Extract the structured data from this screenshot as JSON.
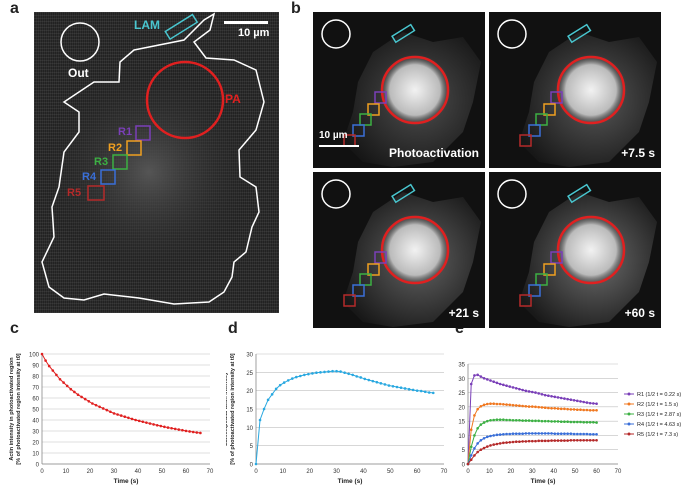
{
  "panel_labels": {
    "a": "a",
    "b": "b",
    "c": "c",
    "d": "d",
    "e": "e"
  },
  "panel_a": {
    "lam": "LAM",
    "scale": "10 µm",
    "out": "Out",
    "pa": "PA",
    "regions": [
      {
        "label": "R1",
        "color": "#7a3fb8"
      },
      {
        "label": "R2",
        "color": "#f0a020"
      },
      {
        "label": "R3",
        "color": "#3cb043"
      },
      {
        "label": "R4",
        "color": "#3a6fd8"
      },
      {
        "label": "R5",
        "color": "#b52a2a"
      }
    ]
  },
  "panel_b": {
    "scale": "10 µm",
    "frames": [
      "Photoactivation",
      "+7.5 s",
      "+21 s",
      "+60 s"
    ]
  },
  "chart_data": [
    {
      "id": "c",
      "type": "line",
      "xlabel": "Time (s)",
      "ylabel_line1": "Actin intensity in photoactivated region",
      "ylabel_line2": "[% of photoactivated region intensity at t0]",
      "xlim": [
        0,
        70
      ],
      "ylim": [
        0,
        100
      ],
      "xticks": [
        0,
        10,
        20,
        30,
        40,
        50,
        60,
        70
      ],
      "yticks": [
        0,
        10,
        20,
        30,
        40,
        50,
        60,
        70,
        80,
        90,
        100
      ],
      "series": [
        {
          "name": "PA",
          "color": "#e02020",
          "x": [
            0,
            1.5,
            3,
            4.5,
            6,
            7.5,
            9,
            10.5,
            12,
            13.5,
            15,
            16.5,
            18,
            19.5,
            21,
            22.5,
            24,
            25.5,
            27,
            28.5,
            30,
            31.5,
            33,
            34.5,
            36,
            37.5,
            39,
            40.5,
            42,
            43.5,
            45,
            46.5,
            48,
            49.5,
            51,
            52.5,
            54,
            55.5,
            57,
            58.5,
            60,
            61.5,
            63,
            64.5,
            66
          ],
          "y": [
            100,
            94,
            89,
            85,
            81,
            77,
            74,
            71,
            68,
            65.5,
            63,
            61,
            59,
            57,
            55,
            53.5,
            52,
            50.5,
            49,
            47.5,
            46,
            45,
            44,
            43,
            42,
            41,
            40,
            39.2,
            38.4,
            37.6,
            36.8,
            36,
            35.2,
            34.5,
            33.8,
            33.1,
            32.5,
            31.9,
            31.3,
            30.7,
            30.1,
            29.6,
            29.1,
            28.6,
            28.2
          ]
        }
      ]
    },
    {
      "id": "d",
      "type": "line",
      "xlabel": "Time (s)",
      "ylabel_line1": "Lamellipodial actin intensity",
      "ylabel_line2": "[% of photoactivated region intensity at t0]",
      "xlim": [
        0,
        70
      ],
      "ylim": [
        0,
        30
      ],
      "xticks": [
        0,
        10,
        20,
        30,
        40,
        50,
        60,
        70
      ],
      "yticks": [
        0,
        5,
        10,
        15,
        20,
        25,
        30
      ],
      "series": [
        {
          "name": "LAM",
          "color": "#29a8e0",
          "x": [
            0,
            1.5,
            3,
            4.5,
            6,
            7.5,
            9,
            10.5,
            12,
            13.5,
            15,
            16.5,
            18,
            19.5,
            21,
            22.5,
            24,
            25.5,
            27,
            28.5,
            30,
            31.5,
            33,
            34.5,
            36,
            37.5,
            39,
            40.5,
            42,
            43.5,
            45,
            46.5,
            48,
            49.5,
            51,
            52.5,
            54,
            55.5,
            57,
            58.5,
            60,
            61.5,
            63,
            64.5,
            66
          ],
          "y": [
            0,
            12,
            15,
            17.5,
            19,
            20.5,
            21.5,
            22.2,
            22.8,
            23.3,
            23.7,
            24,
            24.3,
            24.5,
            24.7,
            24.9,
            25,
            25.1,
            25.2,
            25.3,
            25.3,
            25.2,
            24.9,
            24.6,
            24.3,
            23.9,
            23.6,
            23.2,
            22.9,
            22.6,
            22.3,
            22,
            21.7,
            21.4,
            21.2,
            21,
            20.8,
            20.6,
            20.4,
            20.2,
            20,
            19.9,
            19.7,
            19.5,
            19.4
          ]
        }
      ]
    },
    {
      "id": "e",
      "type": "line",
      "xlabel": "Time (s)",
      "ylabel_line1": "Intensity of photoactivated actin",
      "ylabel_line2": "[% of photoactivated region intensity at t0]",
      "xlim": [
        0,
        70
      ],
      "ylim": [
        0,
        35
      ],
      "xticks": [
        0,
        10,
        20,
        30,
        40,
        50,
        60,
        70
      ],
      "yticks": [
        0,
        5,
        10,
        15,
        20,
        25,
        30,
        35
      ],
      "series": [
        {
          "name": "R1 (1/2 t = 0.22 s)",
          "color": "#7a3fb8",
          "x": [
            0,
            1.5,
            3,
            4.5,
            6,
            7.5,
            9,
            10.5,
            12,
            13.5,
            15,
            16.5,
            18,
            19.5,
            21,
            22.5,
            24,
            25.5,
            27,
            28.5,
            30,
            31.5,
            33,
            34.5,
            36,
            37.5,
            39,
            40.5,
            42,
            43.5,
            45,
            46.5,
            48,
            49.5,
            51,
            52.5,
            54,
            55.5,
            57,
            58.5,
            60
          ],
          "y": [
            0,
            28,
            31,
            31.2,
            30.6,
            30,
            29.6,
            29.2,
            28.8,
            28.4,
            28,
            27.7,
            27.4,
            27.1,
            26.8,
            26.5,
            26.2,
            25.9,
            25.6,
            25.4,
            25.2,
            25,
            24.7,
            24.4,
            24.1,
            23.9,
            23.7,
            23.5,
            23.3,
            23.1,
            22.9,
            22.7,
            22.5,
            22.3,
            22.1,
            21.9,
            21.7,
            21.5,
            21.3,
            21.2,
            21.1
          ]
        },
        {
          "name": "R2 (1/2 t = 1.5 s)",
          "color": "#f07820",
          "x": [
            0,
            1.5,
            3,
            4.5,
            6,
            7.5,
            9,
            10.5,
            12,
            13.5,
            15,
            16.5,
            18,
            19.5,
            21,
            22.5,
            24,
            25.5,
            27,
            28.5,
            30,
            31.5,
            33,
            34.5,
            36,
            37.5,
            39,
            40.5,
            42,
            43.5,
            45,
            46.5,
            48,
            49.5,
            51,
            52.5,
            54,
            55.5,
            57,
            58.5,
            60
          ],
          "y": [
            0,
            12,
            17,
            19.2,
            20.2,
            20.7,
            21,
            21.1,
            21.1,
            21,
            21,
            20.9,
            20.8,
            20.7,
            20.6,
            20.5,
            20.4,
            20.3,
            20.2,
            20.1,
            20.1,
            20,
            19.9,
            19.8,
            19.7,
            19.6,
            19.5,
            19.5,
            19.4,
            19.3,
            19.3,
            19.2,
            19.1,
            19.1,
            19,
            19,
            18.9,
            18.9,
            18.8,
            18.8,
            18.8
          ]
        },
        {
          "name": "R3 (1/2 t = 2.87 s)",
          "color": "#3cb043",
          "x": [
            0,
            1.5,
            3,
            4.5,
            6,
            7.5,
            9,
            10.5,
            12,
            13.5,
            15,
            16.5,
            18,
            19.5,
            21,
            22.5,
            24,
            25.5,
            27,
            28.5,
            30,
            31.5,
            33,
            34.5,
            36,
            37.5,
            39,
            40.5,
            42,
            43.5,
            45,
            46.5,
            48,
            49.5,
            51,
            52.5,
            54,
            55.5,
            57,
            58.5,
            60
          ],
          "y": [
            0,
            6,
            10,
            12.5,
            13.8,
            14.5,
            15,
            15.3,
            15.4,
            15.5,
            15.5,
            15.5,
            15.4,
            15.4,
            15.3,
            15.3,
            15.3,
            15.2,
            15.2,
            15.2,
            15.1,
            15.1,
            15.1,
            15,
            15,
            15,
            14.9,
            14.9,
            14.9,
            14.8,
            14.8,
            14.8,
            14.7,
            14.7,
            14.7,
            14.7,
            14.6,
            14.6,
            14.6,
            14.6,
            14.5
          ]
        },
        {
          "name": "R4 (1/2 t = 4.63 s)",
          "color": "#3a6fd8",
          "x": [
            0,
            1.5,
            3,
            4.5,
            6,
            7.5,
            9,
            10.5,
            12,
            13.5,
            15,
            16.5,
            18,
            19.5,
            21,
            22.5,
            24,
            25.5,
            27,
            28.5,
            30,
            31.5,
            33,
            34.5,
            36,
            37.5,
            39,
            40.5,
            42,
            43.5,
            45,
            46.5,
            48,
            49.5,
            51,
            52.5,
            54,
            55.5,
            57,
            58.5,
            60
          ],
          "y": [
            0,
            3,
            5.5,
            7.2,
            8.3,
            9,
            9.5,
            9.8,
            10,
            10.2,
            10.3,
            10.4,
            10.5,
            10.5,
            10.6,
            10.6,
            10.6,
            10.6,
            10.7,
            10.7,
            10.7,
            10.7,
            10.7,
            10.7,
            10.7,
            10.7,
            10.7,
            10.6,
            10.6,
            10.6,
            10.6,
            10.6,
            10.6,
            10.5,
            10.5,
            10.5,
            10.5,
            10.5,
            10.4,
            10.4,
            10.4
          ]
        },
        {
          "name": "R5 (1/2 t = 7.3 s)",
          "color": "#b52a2a",
          "x": [
            0,
            1.5,
            3,
            4.5,
            6,
            7.5,
            9,
            10.5,
            12,
            13.5,
            15,
            16.5,
            18,
            19.5,
            21,
            22.5,
            24,
            25.5,
            27,
            28.5,
            30,
            31.5,
            33,
            34.5,
            36,
            37.5,
            39,
            40.5,
            42,
            43.5,
            45,
            46.5,
            48,
            49.5,
            51,
            52.5,
            54,
            55.5,
            57,
            58.5,
            60
          ],
          "y": [
            0,
            1.5,
            3,
            4.2,
            5,
            5.6,
            6.1,
            6.5,
            6.8,
            7,
            7.2,
            7.4,
            7.5,
            7.6,
            7.7,
            7.8,
            7.8,
            7.9,
            7.9,
            8,
            8,
            8,
            8.1,
            8.1,
            8.1,
            8.1,
            8.2,
            8.2,
            8.2,
            8.2,
            8.2,
            8.2,
            8.3,
            8.3,
            8.3,
            8.3,
            8.3,
            8.3,
            8.3,
            8.3,
            8.3
          ]
        }
      ]
    }
  ]
}
